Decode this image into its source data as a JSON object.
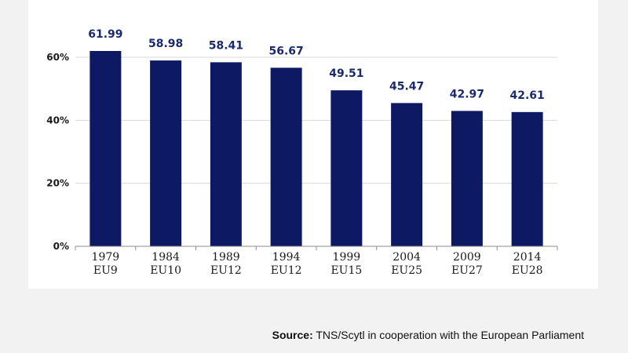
{
  "colors": {
    "bar": "#0d1a63",
    "data_label": "#1a2a6c",
    "grid": "#d9d9d9",
    "axis": "#8c8c8c",
    "tick_text": "#1a1a1a",
    "panel": "#ffffff",
    "background": "#f2f2f2"
  },
  "chart_data": {
    "type": "bar",
    "categories": [
      "1979",
      "1984",
      "1989",
      "1994",
      "1999",
      "2004",
      "2009",
      "2014"
    ],
    "category_sublabels": [
      "EU9",
      "EU10",
      "EU12",
      "EU12",
      "EU15",
      "EU25",
      "EU27",
      "EU28"
    ],
    "values": [
      61.99,
      58.98,
      58.41,
      56.67,
      49.51,
      45.47,
      42.97,
      42.61
    ],
    "value_labels": [
      "61.99",
      "58.98",
      "58.41",
      "56.67",
      "49.51",
      "45.47",
      "42.97",
      "42.61"
    ],
    "y_ticks": [
      0,
      20,
      40,
      60
    ],
    "y_tick_labels": [
      "0%",
      "20%",
      "40%",
      "60%"
    ],
    "ylim": [
      0,
      70
    ],
    "grid": true,
    "legend": "none",
    "title": "",
    "xlabel": "",
    "ylabel": ""
  },
  "source": {
    "label": "Source:",
    "text": " TNS/Scytl in cooperation with the European Parliament"
  }
}
